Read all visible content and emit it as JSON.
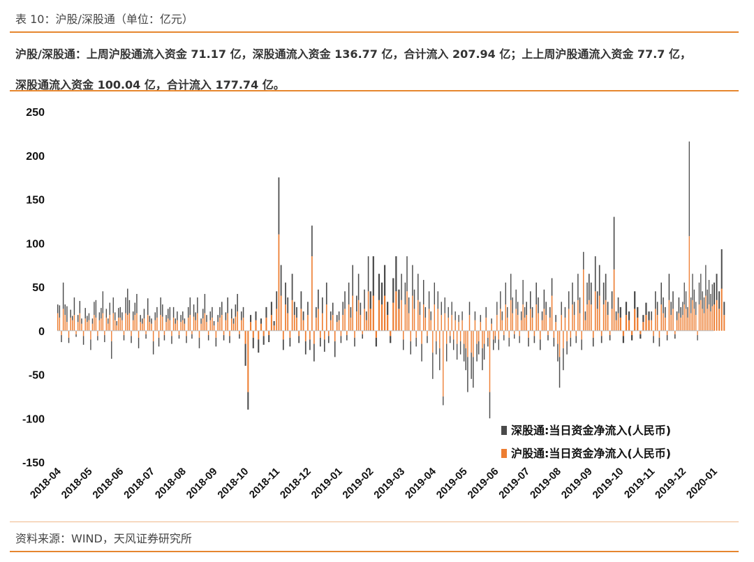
{
  "header": {
    "caption": "表 10：沪股/深股通（单位：亿元）",
    "summary_line1": "沪股/深股通：上周沪股通流入资金 71.17 亿，深股通流入资金 136.77 亿，合计流入 207.94 亿；上上周沪股通流入资金 77.7 亿，",
    "summary_line2": "深股通流入资金 100.04 亿，合计流入 177.74 亿。"
  },
  "footer": {
    "source": "资料来源：WIND，天风证券研究所"
  },
  "colors": {
    "accent": "#e6862e",
    "shenzhen": "#4a4a4a",
    "shanghai": "#ed7d31"
  },
  "chart_data": {
    "type": "bar",
    "stacked": true,
    "ylim": [
      -150,
      250
    ],
    "yticks": [
      250,
      200,
      150,
      100,
      50,
      0,
      -50,
      -100,
      -150
    ],
    "xtick_labels": [
      "2018-04",
      "2018-05",
      "2018-06",
      "2018-07",
      "2018-08",
      "2018-09",
      "2018-10",
      "2018-11",
      "2018-12",
      "2019-01",
      "2019-02",
      "2019-03",
      "2019-04",
      "2019-05",
      "2019-06",
      "2019-07",
      "2019-08",
      "2019-09",
      "2019-10",
      "2019-11",
      "2019-12",
      "2020-01"
    ],
    "legend_position": "bottom-right",
    "series": [
      {
        "name": "深股通:当日资金净流入(人民币)",
        "color": "#4a4a4a",
        "months": [
          {
            "label": "2018-04",
            "values": [
              10,
              14,
              -8,
              30,
              12,
              18,
              -6,
              9,
              5,
              20,
              -3,
              8,
              14,
              6,
              -10,
              12,
              7
            ]
          },
          {
            "label": "2018-05",
            "values": [
              8,
              -12,
              6,
              15,
              20,
              -5,
              9,
              12,
              25,
              -8,
              10,
              6,
              14,
              -20,
              18,
              9,
              5,
              11
            ]
          },
          {
            "label": "2018-06",
            "values": [
              12,
              9,
              -6,
              18,
              30,
              15,
              -8,
              10,
              14,
              22,
              -12,
              8,
              6,
              11,
              -5,
              19,
              7
            ]
          },
          {
            "label": "2018-07",
            "values": [
              6,
              -15,
              9,
              12,
              -10,
              20,
              14,
              -6,
              8,
              11,
              15,
              -9,
              12,
              6,
              10,
              -4,
              8
            ]
          },
          {
            "label": "2018-08",
            "values": [
              10,
              6,
              -8,
              12,
              20,
              -5,
              14,
              9,
              18,
              -12,
              6,
              11,
              22,
              8,
              -6,
              10,
              12
            ]
          },
          {
            "label": "2018-09",
            "values": [
              5,
              -10,
              8,
              12,
              15,
              -6,
              9,
              18,
              -8,
              11,
              6,
              14,
              20,
              -5,
              10,
              12
            ]
          },
          {
            "label": "2018-10",
            "values": [
              -25,
              -20,
              8,
              -12,
              10,
              -15,
              6,
              -10,
              12,
              -8,
              15,
              5
            ]
          },
          {
            "label": "2018-11",
            "values": [
              20,
              65,
              35,
              -12,
              25,
              18,
              -10,
              30,
              15,
              12,
              -8,
              20,
              10,
              -15
            ]
          },
          {
            "label": "2018-12",
            "values": [
              15,
              -12,
              35,
              -20,
              12,
              22,
              -10,
              18,
              -14,
              25,
              -8,
              10,
              14,
              -18,
              8
            ]
          },
          {
            "label": "2019-01",
            "values": [
              10,
              -8,
              15,
              20,
              -6,
              25,
              12,
              35,
              -10,
              18,
              30,
              14,
              -5,
              22,
              10,
              40
            ]
          },
          {
            "label": "2019-02",
            "values": [
              20,
              45,
              -10,
              30,
              25,
              35,
              15,
              -8,
              28,
              40,
              22
            ]
          },
          {
            "label": "2019-03",
            "values": [
              30,
              -12,
              25,
              40,
              18,
              -15,
              35,
              22,
              -10,
              30,
              15,
              -20,
              28,
              12,
              -8,
              20,
              10
            ]
          },
          {
            "label": "2019-04",
            "values": [
              -30,
              25,
              -15,
              20,
              -25,
              15,
              -10,
              18,
              -20,
              12,
              -8,
              15,
              -12,
              10,
              -18,
              8,
              -15,
              10
            ]
          },
          {
            "label": "2019-05",
            "values": [
              -20,
              -25,
              -40,
              15,
              -30,
              -35,
              10,
              -20,
              -15,
              8,
              -25,
              -18,
              12,
              -10,
              -30,
              6,
              -12
            ]
          },
          {
            "label": "2019-06",
            "values": [
              -8,
              15,
              -12,
              20,
              10,
              -6,
              25,
              12,
              -10,
              30,
              18,
              -5,
              22,
              15,
              -8,
              10,
              28,
              12
            ]
          },
          {
            "label": "2019-07",
            "values": [
              15,
              -10,
              20,
              12,
              -8,
              25,
              18,
              -12,
              10,
              22,
              15,
              -6,
              12,
              20,
              -10,
              8
            ]
          },
          {
            "label": "2019-08",
            "values": [
              -20,
              -35,
              15,
              -25,
              12,
              -15,
              20,
              -10,
              25,
              15,
              -8,
              30,
              18,
              -12,
              20,
              10,
              25
            ]
          },
          {
            "label": "2019-09",
            "values": [
              30,
              25,
              -10,
              40,
              20,
              35,
              -8,
              25,
              30,
              15,
              -6,
              20,
              60,
              10,
              18
            ]
          },
          {
            "label": "2019-10",
            "values": [
              12,
              -8,
              15,
              10,
              -6,
              20,
              12,
              -5,
              8,
              14,
              10
            ]
          },
          {
            "label": "2019-11",
            "values": [
              10,
              -8,
              20,
              15,
              -10,
              25,
              18,
              12,
              -6,
              30,
              15,
              20,
              -5,
              10,
              18,
              12
            ]
          },
          {
            "label": "2019-12",
            "values": [
              15,
              25,
              20,
              12,
              108,
              18,
              30,
              22,
              15,
              -6,
              25,
              30,
              20,
              18,
              35,
              22,
              28,
              20,
              25
            ]
          },
          {
            "label": "2020-01",
            "values": [
              25,
              30,
              20,
              45,
              15
            ]
          }
        ]
      },
      {
        "name": "沪股通:当日资金净流入(人民币)",
        "color": "#ed7d31",
        "months": [
          {
            "label": "2018-04",
            "values": [
              20,
              15,
              -5,
              25,
              18,
              10,
              -8,
              15,
              12,
              18,
              -4,
              10,
              20,
              8,
              -6,
              14,
              10
            ]
          },
          {
            "label": "2018-05",
            "values": [
              12,
              -10,
              8,
              18,
              15,
              -6,
              12,
              14,
              20,
              -5,
              15,
              8,
              18,
              -12,
              20,
              12,
              6,
              15
            ]
          },
          {
            "label": "2018-06",
            "values": [
              15,
              12,
              -5,
              20,
              18,
              20,
              -6,
              12,
              18,
              20,
              -8,
              10,
              8,
              14,
              -4,
              18,
              10
            ]
          },
          {
            "label": "2018-07",
            "values": [
              8,
              -12,
              12,
              15,
              -8,
              18,
              16,
              -5,
              10,
              14,
              12,
              -6,
              15,
              8,
              12,
              -5,
              10
            ]
          },
          {
            "label": "2018-08",
            "values": [
              12,
              8,
              -6,
              15,
              18,
              -4,
              16,
              12,
              20,
              -8,
              8,
              14,
              20,
              10,
              -5,
              12,
              15
            ]
          },
          {
            "label": "2018-09",
            "values": [
              6,
              -8,
              10,
              15,
              18,
              -5,
              12,
              20,
              -6,
              14,
              8,
              16,
              22,
              -4,
              12,
              15
            ]
          },
          {
            "label": "2018-10",
            "values": [
              -15,
              -70,
              10,
              -8,
              12,
              -10,
              8,
              -6,
              15,
              -5,
              18,
              6
            ]
          },
          {
            "label": "2018-11",
            "values": [
              25,
              110,
              40,
              -10,
              30,
              20,
              -8,
              35,
              18,
              15,
              -6,
              25,
              12,
              -12
            ]
          },
          {
            "label": "2018-12",
            "values": [
              18,
              -10,
              85,
              -15,
              15,
              25,
              -8,
              20,
              -10,
              30,
              -6,
              12,
              18,
              -12,
              10
            ]
          },
          {
            "label": "2019-01",
            "values": [
              12,
              -6,
              18,
              25,
              -5,
              30,
              15,
              40,
              -8,
              22,
              35,
              18,
              -4,
              25,
              12,
              45
            ]
          },
          {
            "label": "2019-02",
            "values": [
              25,
              40,
              -8,
              35,
              30,
              40,
              18,
              -6,
              32,
              45,
              25
            ]
          },
          {
            "label": "2019-03",
            "values": [
              35,
              -10,
              30,
              45,
              20,
              -12,
              40,
              25,
              -8,
              35,
              18,
              -15,
              30,
              15,
              -6,
              25,
              12
            ]
          },
          {
            "label": "2019-04",
            "values": [
              -25,
              30,
              -12,
              25,
              -20,
              18,
              -75,
              20,
              -15,
              15,
              -6,
              18,
              -10,
              12,
              -15,
              10,
              -12,
              12
            ]
          },
          {
            "label": "2019-05",
            "values": [
              -15,
              -20,
              -30,
              18,
              -25,
              -30,
              12,
              -15,
              -12,
              10,
              -20,
              -15,
              15,
              -8,
              -70,
              8,
              -10
            ]
          },
          {
            "label": "2019-06",
            "values": [
              -6,
              18,
              -10,
              25,
              12,
              -5,
              30,
              15,
              -8,
              35,
              20,
              -4,
              25,
              18,
              -6,
              12,
              30,
              15
            ]
          },
          {
            "label": "2019-07",
            "values": [
              18,
              -8,
              25,
              15,
              -6,
              30,
              20,
              -10,
              12,
              25,
              18,
              -5,
              15,
              40,
              -8,
              10
            ]
          },
          {
            "label": "2019-08",
            "values": [
              -15,
              -30,
              18,
              -20,
              15,
              -12,
              25,
              -8,
              30,
              18,
              -6,
              35,
              20,
              -10,
              70,
              12,
              30
            ]
          },
          {
            "label": "2019-09",
            "values": [
              35,
              30,
              -8,
              45,
              25,
              40,
              -6,
              30,
              35,
              18,
              -5,
              25,
              70,
              12,
              20
            ]
          },
          {
            "label": "2019-10",
            "values": [
              15,
              -6,
              18,
              12,
              -5,
              25,
              15,
              -4,
              10,
              18,
              12
            ]
          },
          {
            "label": "2019-11",
            "values": [
              12,
              -6,
              25,
              18,
              -8,
              30,
              20,
              15,
              -5,
              35,
              18,
              25,
              -4,
              12,
              20,
              15
            ]
          },
          {
            "label": "2019-12",
            "values": [
              18,
              30,
              25,
              15,
              108,
              20,
              35,
              25,
              18,
              -5,
              30,
              35,
              25,
              20,
              40,
              25,
              30,
              22,
              28
            ]
          },
          {
            "label": "2020-01",
            "values": [
              30,
              35,
              25,
              48,
              18
            ]
          }
        ]
      }
    ]
  }
}
